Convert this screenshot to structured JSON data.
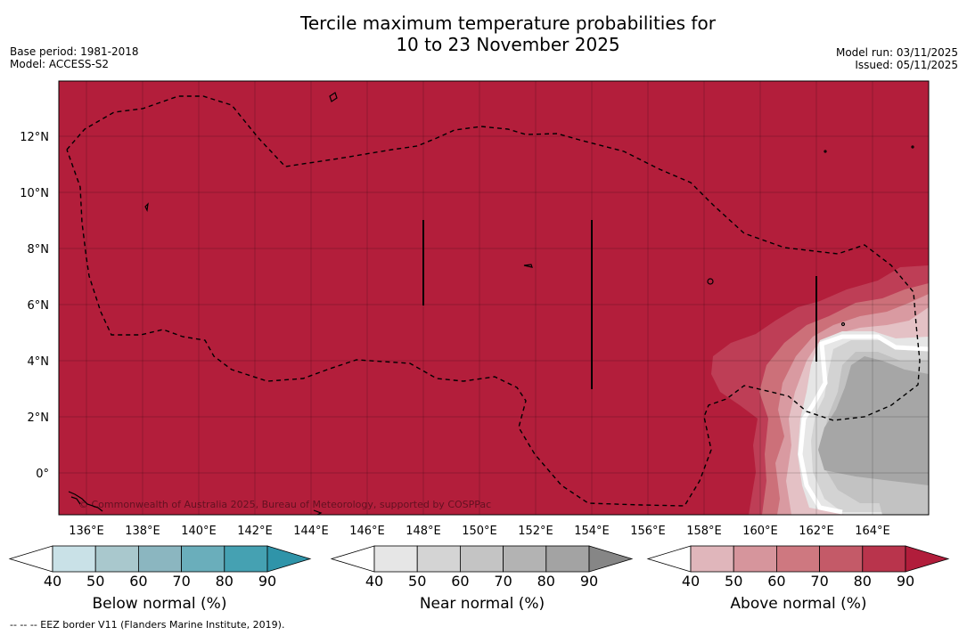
{
  "title_line1": "Tercile maximum temperature probabilities for",
  "title_line2": "10 to 23 November 2025",
  "base_period": "Base period: 1981-2018",
  "model": "Model: ACCESS-S2",
  "model_run": "Model run: 03/11/2025",
  "issued": "Issued: 05/11/2025",
  "copyright": "© Commonwealth of Australia 2025, Bureau of Meteorology, supported by COSPPac",
  "footnote": "--  --  -- EEZ border V11 (Flanders Marine Institute, 2019).",
  "map": {
    "lon_range": [
      135,
      166
    ],
    "lat_range": [
      -1.5,
      14
    ],
    "lon_ticks": [
      "136°E",
      "138°E",
      "140°E",
      "142°E",
      "144°E",
      "146°E",
      "148°E",
      "150°E",
      "152°E",
      "154°E",
      "156°E",
      "158°E",
      "160°E",
      "162°E",
      "164°E"
    ],
    "lat_ticks": [
      "12°N",
      "10°N",
      "8°N",
      "6°N",
      "4°N",
      "2°N",
      "0°"
    ],
    "background_category": "Above normal 80-90%"
  },
  "colorbars": [
    {
      "label": "Below normal (%)",
      "ticks": [
        "40",
        "50",
        "60",
        "70",
        "80",
        "90"
      ],
      "colors": [
        "#ffffff",
        "#c9e1e7",
        "#a9c8cd",
        "#8bb6c0",
        "#6aaebb",
        "#45a1b2",
        "#2f94a9"
      ]
    },
    {
      "label": "Near normal (%)",
      "ticks": [
        "40",
        "50",
        "60",
        "70",
        "80",
        "90"
      ],
      "colors": [
        "#ffffff",
        "#e6e6e6",
        "#d4d4d4",
        "#c4c4c4",
        "#b3b3b3",
        "#a3a3a3",
        "#868686"
      ]
    },
    {
      "label": "Above normal (%)",
      "ticks": [
        "40",
        "50",
        "60",
        "70",
        "80",
        "90"
      ],
      "colors": [
        "#ffffff",
        "#e0b6bb",
        "#d6959c",
        "#ce7880",
        "#c45a68",
        "#b9344c",
        "#b11d3b"
      ]
    }
  ],
  "colors": {
    "above_90": "#b11d3b",
    "frame": "#000000"
  }
}
